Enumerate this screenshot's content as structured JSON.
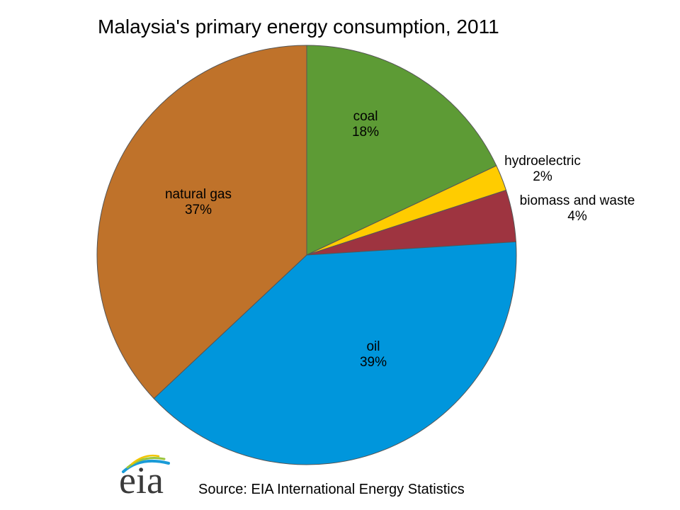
{
  "chart_data": {
    "type": "pie",
    "title": "Malaysia's primary energy consumption, 2011",
    "start_category": "coal",
    "direction": "clockwise",
    "slices": [
      {
        "name": "coal",
        "label": "18%",
        "value": 18,
        "color": "#5d9b35"
      },
      {
        "name": "hydroelectric",
        "label": "2%",
        "value": 2,
        "color": "#ffcc00"
      },
      {
        "name": "biomass and waste",
        "label": "4%",
        "value": 4,
        "color": "#9e3440"
      },
      {
        "name": "oil",
        "label": "39%",
        "value": 39,
        "color": "#0096dc"
      },
      {
        "name": "natural gas",
        "label": "37%",
        "value": 37,
        "color": "#bf722a"
      }
    ]
  },
  "footer": {
    "logo_text": "eia",
    "source": "Source:  EIA International  Energy Statistics"
  }
}
